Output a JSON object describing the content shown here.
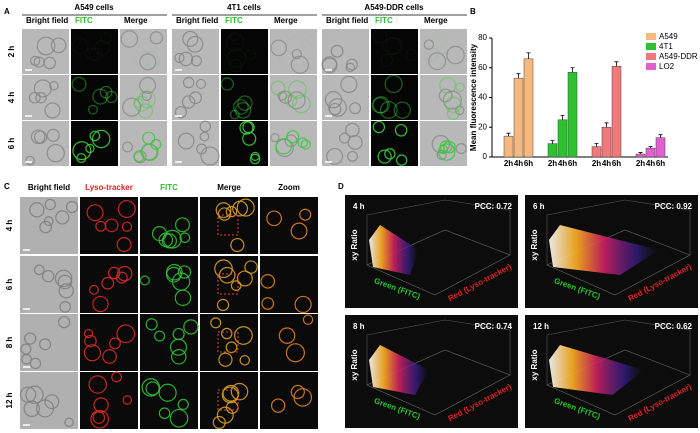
{
  "panel_labels": [
    "A",
    "B",
    "C",
    "D"
  ],
  "panel_a": {
    "groups": [
      "A549 cells",
      "4T1 cells",
      "A549-DDR cells"
    ],
    "columns": [
      "Bright field",
      "FITC",
      "Merge"
    ],
    "rows": [
      "2 h",
      "4 h",
      "6 h"
    ]
  },
  "chart_data": {
    "type": "bar",
    "ylabel": "Mean fluorescence intensity",
    "categories": [
      "2h",
      "4h",
      "6h"
    ],
    "series": [
      {
        "name": "A549",
        "color": "#f5b97f",
        "values": [
          14,
          53,
          66
        ],
        "errors": [
          2,
          3,
          4
        ]
      },
      {
        "name": "4T1",
        "color": "#2ec02e",
        "values": [
          9,
          25,
          57
        ],
        "errors": [
          2,
          3,
          3
        ]
      },
      {
        "name": "A549-DDR",
        "color": "#f07a7a",
        "values": [
          7,
          20,
          61
        ],
        "errors": [
          2,
          3,
          3
        ]
      },
      {
        "name": "LO2",
        "color": "#e060d0",
        "values": [
          2,
          6,
          13
        ],
        "errors": [
          1,
          1,
          2
        ]
      }
    ],
    "ylim": [
      0,
      80
    ],
    "yticks": [
      0,
      20,
      40,
      60,
      80
    ]
  },
  "panel_c": {
    "columns": [
      "Bright field",
      "Lyso-tracker",
      "FITC",
      "Merge",
      "Zoom"
    ],
    "rows": [
      "4 h",
      "6 h",
      "8 h",
      "12 h"
    ]
  },
  "panel_d": {
    "plots": [
      {
        "label": "4 h",
        "pcc": "PCC: 0.72"
      },
      {
        "label": "6 h",
        "pcc": "PCC: 0.92"
      },
      {
        "label": "8 h",
        "pcc": "PCC: 0.74"
      },
      {
        "label": "12 h",
        "pcc": "PCC: 0.62"
      }
    ],
    "axis_labels": {
      "z": "xy Ratio",
      "x": "Green (FITC)",
      "y": "Red (Lyso-tracker)"
    }
  }
}
